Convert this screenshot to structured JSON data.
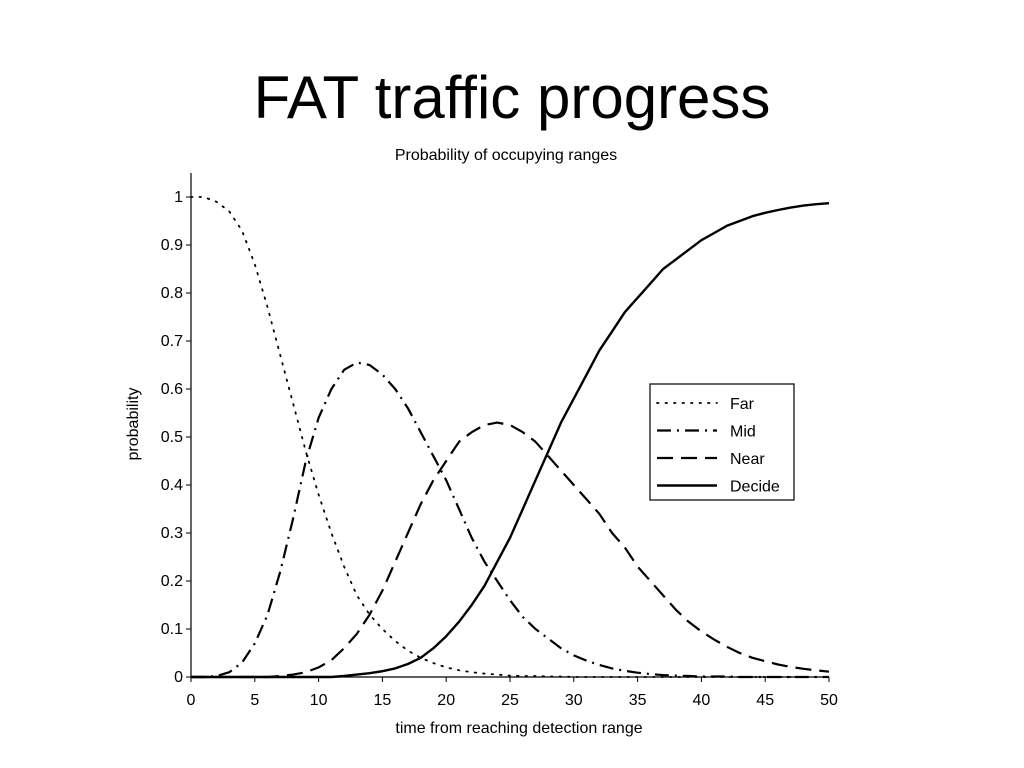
{
  "slide": {
    "title": "FAT traffic progress"
  },
  "chart_data": {
    "type": "line",
    "title": "Probability of occupying ranges",
    "xlabel": "time from reaching detection range",
    "ylabel": "probability",
    "xlim": [
      0,
      50
    ],
    "ylim": [
      0,
      1.05
    ],
    "xticks": [
      0,
      5,
      10,
      15,
      20,
      25,
      30,
      35,
      40,
      45,
      50
    ],
    "xtick_labels": [
      "0",
      "5",
      "10",
      "15",
      "20",
      "25",
      "30",
      "35",
      "40",
      "45",
      "50"
    ],
    "yticks": [
      0,
      0.1,
      0.2,
      0.3,
      0.4,
      0.5,
      0.6,
      0.7,
      0.8,
      0.9,
      1
    ],
    "ytick_labels": [
      "0",
      "0.1",
      "0.2",
      "0.3",
      "0.4",
      "0.5",
      "0.6",
      "0.7",
      "0.8",
      "0.9",
      "1"
    ],
    "grid": false,
    "legend_position": "right",
    "x": [
      0,
      1,
      2,
      3,
      4,
      5,
      6,
      7,
      8,
      9,
      10,
      11,
      12,
      13,
      14,
      15,
      16,
      17,
      18,
      19,
      20,
      21,
      22,
      23,
      24,
      25,
      26,
      27,
      28,
      29,
      30,
      31,
      32,
      33,
      34,
      35,
      36,
      37,
      38,
      39,
      40,
      41,
      42,
      43,
      44,
      45,
      46,
      47,
      48,
      49,
      50
    ],
    "series": [
      {
        "name": "Far",
        "style": "dotted",
        "values": [
          1.0,
          1.0,
          0.99,
          0.97,
          0.93,
          0.86,
          0.77,
          0.67,
          0.57,
          0.47,
          0.38,
          0.3,
          0.23,
          0.17,
          0.13,
          0.1,
          0.075,
          0.055,
          0.04,
          0.029,
          0.02,
          0.014,
          0.01,
          0.007,
          0.005,
          0.003,
          0.002,
          0.002,
          0.001,
          0.001,
          0.0,
          0.0,
          0.0,
          0.0,
          0.0,
          0.0,
          0.0,
          0.0,
          0.0,
          0.0,
          0.0,
          0.0,
          0.0,
          0.0,
          0.0,
          0.0,
          0.0,
          0.0,
          0.0,
          0.0,
          0.0
        ]
      },
      {
        "name": "Mid",
        "style": "dashdot",
        "values": [
          0.0,
          0.0,
          0.002,
          0.01,
          0.03,
          0.07,
          0.13,
          0.22,
          0.33,
          0.45,
          0.54,
          0.6,
          0.64,
          0.655,
          0.65,
          0.63,
          0.6,
          0.56,
          0.51,
          0.46,
          0.41,
          0.35,
          0.29,
          0.24,
          0.2,
          0.16,
          0.125,
          0.1,
          0.08,
          0.06,
          0.045,
          0.034,
          0.025,
          0.018,
          0.013,
          0.009,
          0.006,
          0.004,
          0.003,
          0.002,
          0.001,
          0.001,
          0.001,
          0.0,
          0.0,
          0.0,
          0.0,
          0.0,
          0.0,
          0.0,
          0.0
        ]
      },
      {
        "name": "Near",
        "style": "dashed",
        "values": [
          0.0,
          0.0,
          0.0,
          0.0,
          0.0,
          0.0,
          0.0,
          0.002,
          0.005,
          0.01,
          0.02,
          0.035,
          0.06,
          0.09,
          0.13,
          0.18,
          0.24,
          0.3,
          0.36,
          0.41,
          0.45,
          0.49,
          0.51,
          0.525,
          0.53,
          0.525,
          0.51,
          0.49,
          0.46,
          0.43,
          0.4,
          0.37,
          0.34,
          0.3,
          0.27,
          0.23,
          0.2,
          0.17,
          0.14,
          0.115,
          0.095,
          0.078,
          0.063,
          0.05,
          0.04,
          0.033,
          0.026,
          0.021,
          0.017,
          0.014,
          0.011
        ]
      },
      {
        "name": "Decide",
        "style": "solid",
        "values": [
          0.0,
          0.0,
          0.0,
          0.0,
          0.0,
          0.0,
          0.0,
          0.0,
          0.0,
          0.0,
          0.0,
          0.0,
          0.002,
          0.005,
          0.008,
          0.012,
          0.018,
          0.027,
          0.04,
          0.06,
          0.085,
          0.115,
          0.15,
          0.19,
          0.24,
          0.29,
          0.35,
          0.41,
          0.47,
          0.53,
          0.58,
          0.63,
          0.68,
          0.72,
          0.76,
          0.79,
          0.82,
          0.85,
          0.87,
          0.89,
          0.91,
          0.925,
          0.94,
          0.95,
          0.96,
          0.967,
          0.973,
          0.978,
          0.982,
          0.985,
          0.987
        ]
      }
    ]
  }
}
